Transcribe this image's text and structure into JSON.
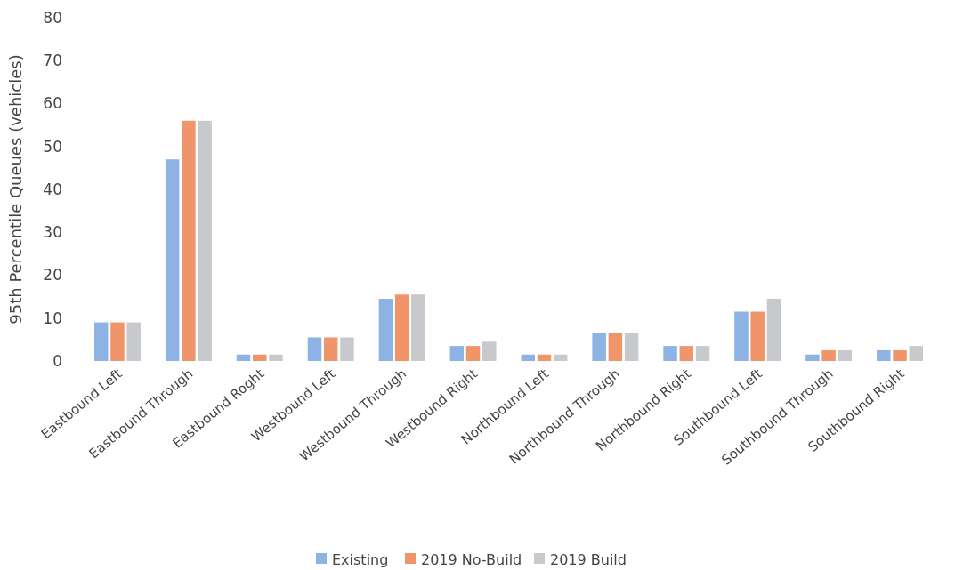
{
  "chart_data": {
    "type": "bar",
    "ylabel": "95th Percentile Queues (vehicles)",
    "categories": [
      "Eastbound Left",
      "Eastbound Through",
      "Eastbound Roght",
      "Westbound Left",
      "Westbound Through",
      "Westbound Right",
      "Northbound Left",
      "Northbound Through",
      "Northbound Right",
      "Southbound Left",
      "Southbound Through",
      "Southbound Right"
    ],
    "series": [
      {
        "name": "Existing",
        "color": "#8db3e5",
        "values": [
          9,
          47,
          1.5,
          5.5,
          14.5,
          3.5,
          1.5,
          6.5,
          3.5,
          11.5,
          1.5,
          2.5
        ]
      },
      {
        "name": "2019 No-Build",
        "color": "#f0956a",
        "values": [
          9,
          56,
          1.5,
          5.5,
          15.5,
          3.5,
          1.5,
          6.5,
          3.5,
          11.5,
          2.5,
          2.5
        ]
      },
      {
        "name": "2019 Build",
        "color": "#c8c9cc",
        "values": [
          9,
          56,
          1.5,
          5.5,
          15.5,
          4.5,
          1.5,
          6.5,
          3.5,
          14.5,
          2.5,
          3.5
        ]
      }
    ],
    "ylim": [
      0,
      80
    ],
    "yticks": [
      0,
      10,
      20,
      30,
      40,
      50,
      60,
      70,
      80
    ],
    "grid": false,
    "legend": "bottom"
  }
}
